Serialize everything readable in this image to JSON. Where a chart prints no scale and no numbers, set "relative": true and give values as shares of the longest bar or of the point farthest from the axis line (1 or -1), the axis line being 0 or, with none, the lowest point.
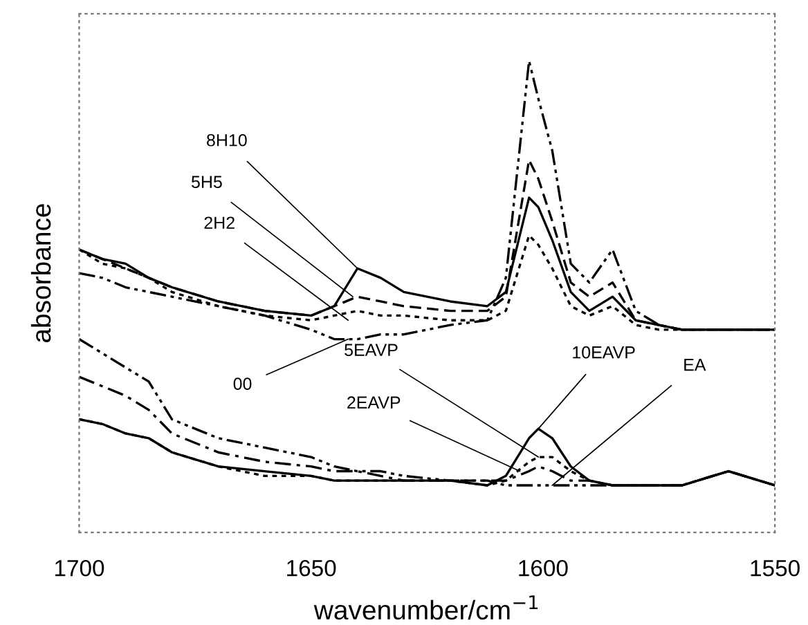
{
  "chart_data": {
    "type": "line",
    "relative": true,
    "xlabel": "wavenumber/cm$^{−1}$",
    "ylabel": "absorbance",
    "x": [
      1700,
      1695,
      1690,
      1685,
      1680,
      1670,
      1660,
      1650,
      1645,
      1640,
      1635,
      1630,
      1620,
      1612,
      1608,
      1603,
      1601,
      1598,
      1594,
      1590,
      1585,
      1580,
      1575,
      1570,
      1560,
      1550
    ],
    "xlim": [
      1700,
      1550
    ],
    "xticks": [
      1700,
      1650,
      1600,
      1550
    ],
    "grid": false,
    "legend": false,
    "marker": "none",
    "series": [
      {
        "color": "#000000",
        "line_style": "solid",
        "values": [
          0.6,
          0.58,
          0.57,
          0.54,
          0.52,
          0.49,
          0.47,
          0.46,
          0.48,
          0.56,
          0.54,
          0.51,
          0.49,
          0.48,
          0.51,
          0.71,
          0.69,
          0.62,
          0.51,
          0.47,
          0.5,
          0.45,
          0.44,
          0.43,
          0.43,
          0.43
        ]
      },
      {
        "color": "#000000",
        "line_style": "dashed",
        "values": [
          0.6,
          0.58,
          0.56,
          0.54,
          0.52,
          0.49,
          0.47,
          0.46,
          0.48,
          0.5,
          0.49,
          0.48,
          0.47,
          0.47,
          0.5,
          0.79,
          0.75,
          0.66,
          0.53,
          0.5,
          0.53,
          0.45,
          0.44,
          0.43,
          0.43,
          0.43
        ]
      },
      {
        "color": "#000000",
        "line_style": "dotted",
        "values": [
          0.6,
          0.57,
          0.56,
          0.54,
          0.51,
          0.48,
          0.46,
          0.45,
          0.46,
          0.47,
          0.46,
          0.46,
          0.45,
          0.45,
          0.47,
          0.63,
          0.61,
          0.56,
          0.48,
          0.46,
          0.48,
          0.44,
          0.43,
          0.43,
          0.43,
          0.43
        ]
      },
      {
        "color": "#000000",
        "line_style": "dashdotdot",
        "values": [
          0.55,
          0.54,
          0.52,
          0.51,
          0.5,
          0.48,
          0.46,
          0.43,
          0.41,
          0.41,
          0.42,
          0.42,
          0.44,
          0.45,
          0.54,
          1,
          0.92,
          0.81,
          0.57,
          0.53,
          0.6,
          0.47,
          0.44,
          0.43,
          0.43,
          0.43
        ]
      },
      {
        "color": "#000000",
        "line_style": "solid",
        "values": [
          0.24,
          0.23,
          0.21,
          0.2,
          0.17,
          0.14,
          0.13,
          0.12,
          0.11,
          0.11,
          0.11,
          0.11,
          0.11,
          0.1,
          0.12,
          0.2,
          0.22,
          0.2,
          0.14,
          0.11,
          0.1,
          0.1,
          0.1,
          0.1,
          0.13,
          0.1
        ]
      },
      {
        "color": "#000000",
        "line_style": "dotted",
        "values": [
          0.24,
          0.23,
          0.21,
          0.2,
          0.17,
          0.14,
          0.12,
          0.12,
          0.11,
          0.11,
          0.11,
          0.11,
          0.11,
          0.1,
          0.11,
          0.15,
          0.16,
          0.16,
          0.13,
          0.11,
          0.1,
          0.1,
          0.1,
          0.1,
          0.13,
          0.1
        ]
      },
      {
        "color": "#000000",
        "line_style": "dashdot",
        "values": [
          0.33,
          0.31,
          0.29,
          0.26,
          0.21,
          0.17,
          0.15,
          0.14,
          0.13,
          0.13,
          0.12,
          0.11,
          0.11,
          0.11,
          0.11,
          0.13,
          0.14,
          0.13,
          0.11,
          0.11,
          0.1,
          0.1,
          0.1,
          0.1,
          0.13,
          0.1
        ]
      },
      {
        "color": "#000000",
        "line_style": "dashdotdot",
        "values": [
          0.41,
          0.38,
          0.35,
          0.32,
          0.24,
          0.2,
          0.18,
          0.16,
          0.14,
          0.13,
          0.13,
          0.12,
          0.11,
          0.11,
          0.1,
          0.1,
          0.1,
          0.1,
          0.1,
          0.1,
          0.1,
          0.1,
          0.1,
          0.1,
          0.13,
          0.1
        ]
      }
    ],
    "annotations": [
      {
        "text": "8H10",
        "x": 1640,
        "y": 0.56
      },
      {
        "text": "5H5",
        "x": 1641,
        "y": 0.5
      },
      {
        "text": "2H2",
        "x": 1642,
        "y": 0.45
      },
      {
        "text": "00",
        "x": 1642,
        "y": 0.41
      },
      {
        "text": "5EAVP",
        "x": 1601,
        "y": 0.16
      },
      {
        "text": "2EAVP",
        "x": 1605,
        "y": 0.13
      },
      {
        "text": "10EAVP",
        "x": 1601,
        "y": 0.22
      },
      {
        "text": "EA",
        "x": 1598,
        "y": 0.1
      }
    ]
  }
}
